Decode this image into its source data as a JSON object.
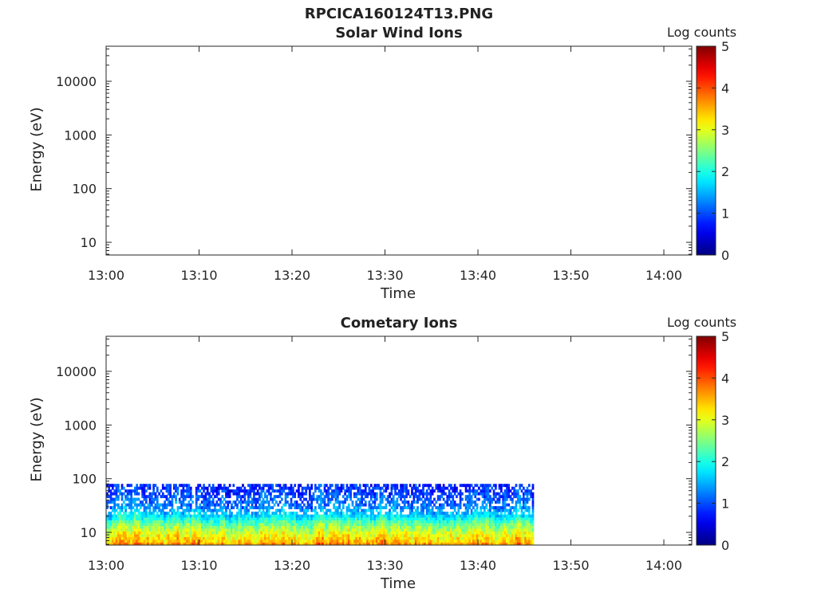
{
  "figure_title": "RPCICA160124T13.PNG",
  "chart_data": [
    {
      "type": "heatmap",
      "title": "Solar Wind Ions",
      "xlabel": "Time",
      "ylabel": "Energy (eV)",
      "y_scale": "log",
      "xlim": [
        "13:00",
        "14:03"
      ],
      "ylim": [
        5.8,
        45000
      ],
      "x_ticks": [
        "13:00",
        "13:10",
        "13:20",
        "13:30",
        "13:40",
        "13:50",
        "14:00"
      ],
      "y_ticks": [
        "10",
        "100",
        "1000",
        "10000"
      ],
      "colorbar": {
        "label": "Log counts",
        "min": 0,
        "max": 5,
        "ticks": [
          "0",
          "1",
          "2",
          "3",
          "4",
          "5"
        ],
        "colormap": "jet"
      },
      "data_present": false
    },
    {
      "type": "heatmap",
      "title": "Cometary Ions",
      "xlabel": "Time",
      "ylabel": "Energy (eV)",
      "y_scale": "log",
      "xlim": [
        "13:00",
        "14:03"
      ],
      "ylim": [
        5.8,
        45000
      ],
      "x_ticks": [
        "13:00",
        "13:10",
        "13:20",
        "13:30",
        "13:40",
        "13:50",
        "14:00"
      ],
      "y_ticks": [
        "10",
        "100",
        "1000",
        "10000"
      ],
      "colorbar": {
        "label": "Log counts",
        "min": 0,
        "max": 5,
        "ticks": [
          "0",
          "1",
          "2",
          "3",
          "4",
          "5"
        ],
        "colormap": "jet"
      },
      "data_present": true,
      "data_time_range": [
        "13:00",
        "13:46"
      ],
      "data_energy_range_eV": [
        5.8,
        80
      ],
      "log_count_profile": [
        {
          "energy_eV": 80,
          "log_counts": 0.8
        },
        {
          "energy_eV": 50,
          "log_counts": 1.0
        },
        {
          "energy_eV": 30,
          "log_counts": 1.3
        },
        {
          "energy_eV": 20,
          "log_counts": 1.8
        },
        {
          "energy_eV": 14,
          "log_counts": 2.5
        },
        {
          "energy_eV": 10,
          "log_counts": 3.0
        },
        {
          "energy_eV": 7,
          "log_counts": 3.4
        },
        {
          "energy_eV": 6,
          "log_counts": 3.7
        }
      ]
    }
  ]
}
